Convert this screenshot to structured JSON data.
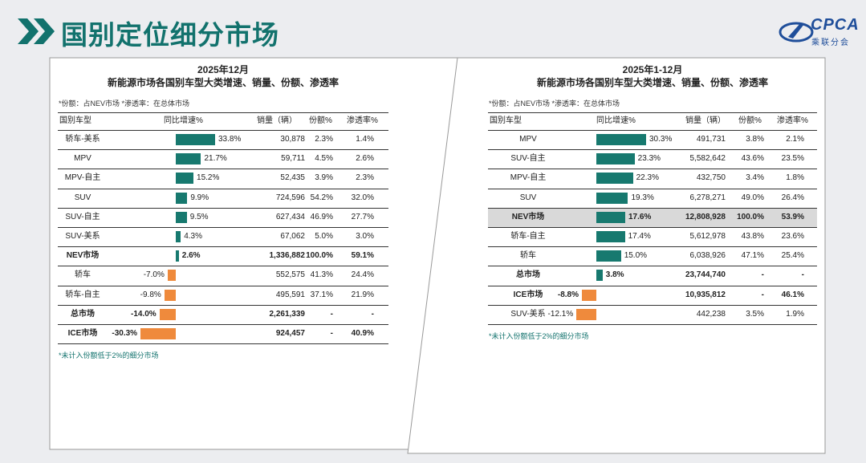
{
  "header": {
    "title": "国别定位细分市场",
    "logo_text": "CPCA",
    "logo_sub": "乘联分会"
  },
  "colors": {
    "positive": "#17796f",
    "negative": "#ef8a3c",
    "accent": "#12726d",
    "highlight": "#d9d9d9"
  },
  "chart_data": [
    {
      "type": "table",
      "title_line1": "2025年12月",
      "title_line2": "新能源市场各国别车型大类增速、销量、份额、渗透率",
      "note": "*份额：占NEV市场   *渗透率：在总体市场",
      "columns": [
        "国别车型",
        "同比增速%",
        "销量（辆）",
        "份额%",
        "渗透率%"
      ],
      "bar_max": 33.8,
      "highlight_index": -1,
      "rows": [
        {
          "name": "轿车-美系",
          "growth": 33.8,
          "growth_label": "33.8%",
          "sales": "30,878",
          "share": "2.3%",
          "pen": "1.4%",
          "bold": false
        },
        {
          "name": "MPV",
          "growth": 21.7,
          "growth_label": "21.7%",
          "sales": "59,711",
          "share": "4.5%",
          "pen": "2.6%",
          "bold": false
        },
        {
          "name": "MPV-自主",
          "growth": 15.2,
          "growth_label": "15.2%",
          "sales": "52,435",
          "share": "3.9%",
          "pen": "2.3%",
          "bold": false
        },
        {
          "name": "SUV",
          "growth": 9.9,
          "growth_label": "9.9%",
          "sales": "724,596",
          "share": "54.2%",
          "pen": "32.0%",
          "bold": false
        },
        {
          "name": "SUV-自主",
          "growth": 9.5,
          "growth_label": "9.5%",
          "sales": "627,434",
          "share": "46.9%",
          "pen": "27.7%",
          "bold": false
        },
        {
          "name": "SUV-美系",
          "growth": 4.3,
          "growth_label": "4.3%",
          "sales": "67,062",
          "share": "5.0%",
          "pen": "3.0%",
          "bold": false
        },
        {
          "name": "NEV市场",
          "growth": 2.6,
          "growth_label": "2.6%",
          "sales": "1,336,882",
          "share": "100.0%",
          "pen": "59.1%",
          "bold": true
        },
        {
          "name": "轿车",
          "growth": -7.0,
          "growth_label": "-7.0%",
          "sales": "552,575",
          "share": "41.3%",
          "pen": "24.4%",
          "bold": false
        },
        {
          "name": "轿车-自主",
          "growth": -9.8,
          "growth_label": "-9.8%",
          "sales": "495,591",
          "share": "37.1%",
          "pen": "21.9%",
          "bold": false
        },
        {
          "name": "总市场",
          "growth": -14.0,
          "growth_label": "-14.0%",
          "sales": "2,261,339",
          "share": "-",
          "pen": "-",
          "bold": true
        },
        {
          "name": "ICE市场",
          "growth": -30.3,
          "growth_label": "-30.3%",
          "sales": "924,457",
          "share": "-",
          "pen": "40.9%",
          "bold": true
        }
      ],
      "footnote": "*未计入份额低于2%的细分市场"
    },
    {
      "type": "table",
      "title_line1": "2025年1-12月",
      "title_line2": "新能源市场各国别车型大类增速、销量、份额、渗透率",
      "note": "*份额：占NEV市场   *渗透率：在总体市场",
      "columns": [
        "国别车型",
        "同比增速%",
        "销量（辆）",
        "份额%",
        "渗透率%"
      ],
      "bar_max": 30.3,
      "highlight_index": 4,
      "rows": [
        {
          "name": "MPV",
          "growth": 30.3,
          "growth_label": "30.3%",
          "sales": "491,731",
          "share": "3.8%",
          "pen": "2.1%",
          "bold": false
        },
        {
          "name": "SUV-自主",
          "growth": 23.3,
          "growth_label": "23.3%",
          "sales": "5,582,642",
          "share": "43.6%",
          "pen": "23.5%",
          "bold": false
        },
        {
          "name": "MPV-自主",
          "growth": 22.3,
          "growth_label": "22.3%",
          "sales": "432,750",
          "share": "3.4%",
          "pen": "1.8%",
          "bold": false
        },
        {
          "name": "SUV",
          "growth": 19.3,
          "growth_label": "19.3%",
          "sales": "6,278,271",
          "share": "49.0%",
          "pen": "26.4%",
          "bold": false
        },
        {
          "name": "NEV市场",
          "growth": 17.6,
          "growth_label": "17.6%",
          "sales": "12,808,928",
          "share": "100.0%",
          "pen": "53.9%",
          "bold": true
        },
        {
          "name": "轿车-自主",
          "growth": 17.4,
          "growth_label": "17.4%",
          "sales": "5,612,978",
          "share": "43.8%",
          "pen": "23.6%",
          "bold": false
        },
        {
          "name": "轿车",
          "growth": 15.0,
          "growth_label": "15.0%",
          "sales": "6,038,926",
          "share": "47.1%",
          "pen": "25.4%",
          "bold": false
        },
        {
          "name": "总市场",
          "growth": 3.8,
          "growth_label": "3.8%",
          "sales": "23,744,740",
          "share": "-",
          "pen": "-",
          "bold": true
        },
        {
          "name": "ICE市场",
          "growth": -8.8,
          "growth_label": "-8.8%",
          "sales": "10,935,812",
          "share": "-",
          "pen": "46.1%",
          "bold": true
        },
        {
          "name": "SUV-美系",
          "growth": -12.1,
          "growth_label": "-12.1%",
          "sales": "442,238",
          "share": "3.5%",
          "pen": "1.9%",
          "bold": false
        }
      ],
      "footnote": "*未计入份额低于2%的细分市场"
    }
  ]
}
